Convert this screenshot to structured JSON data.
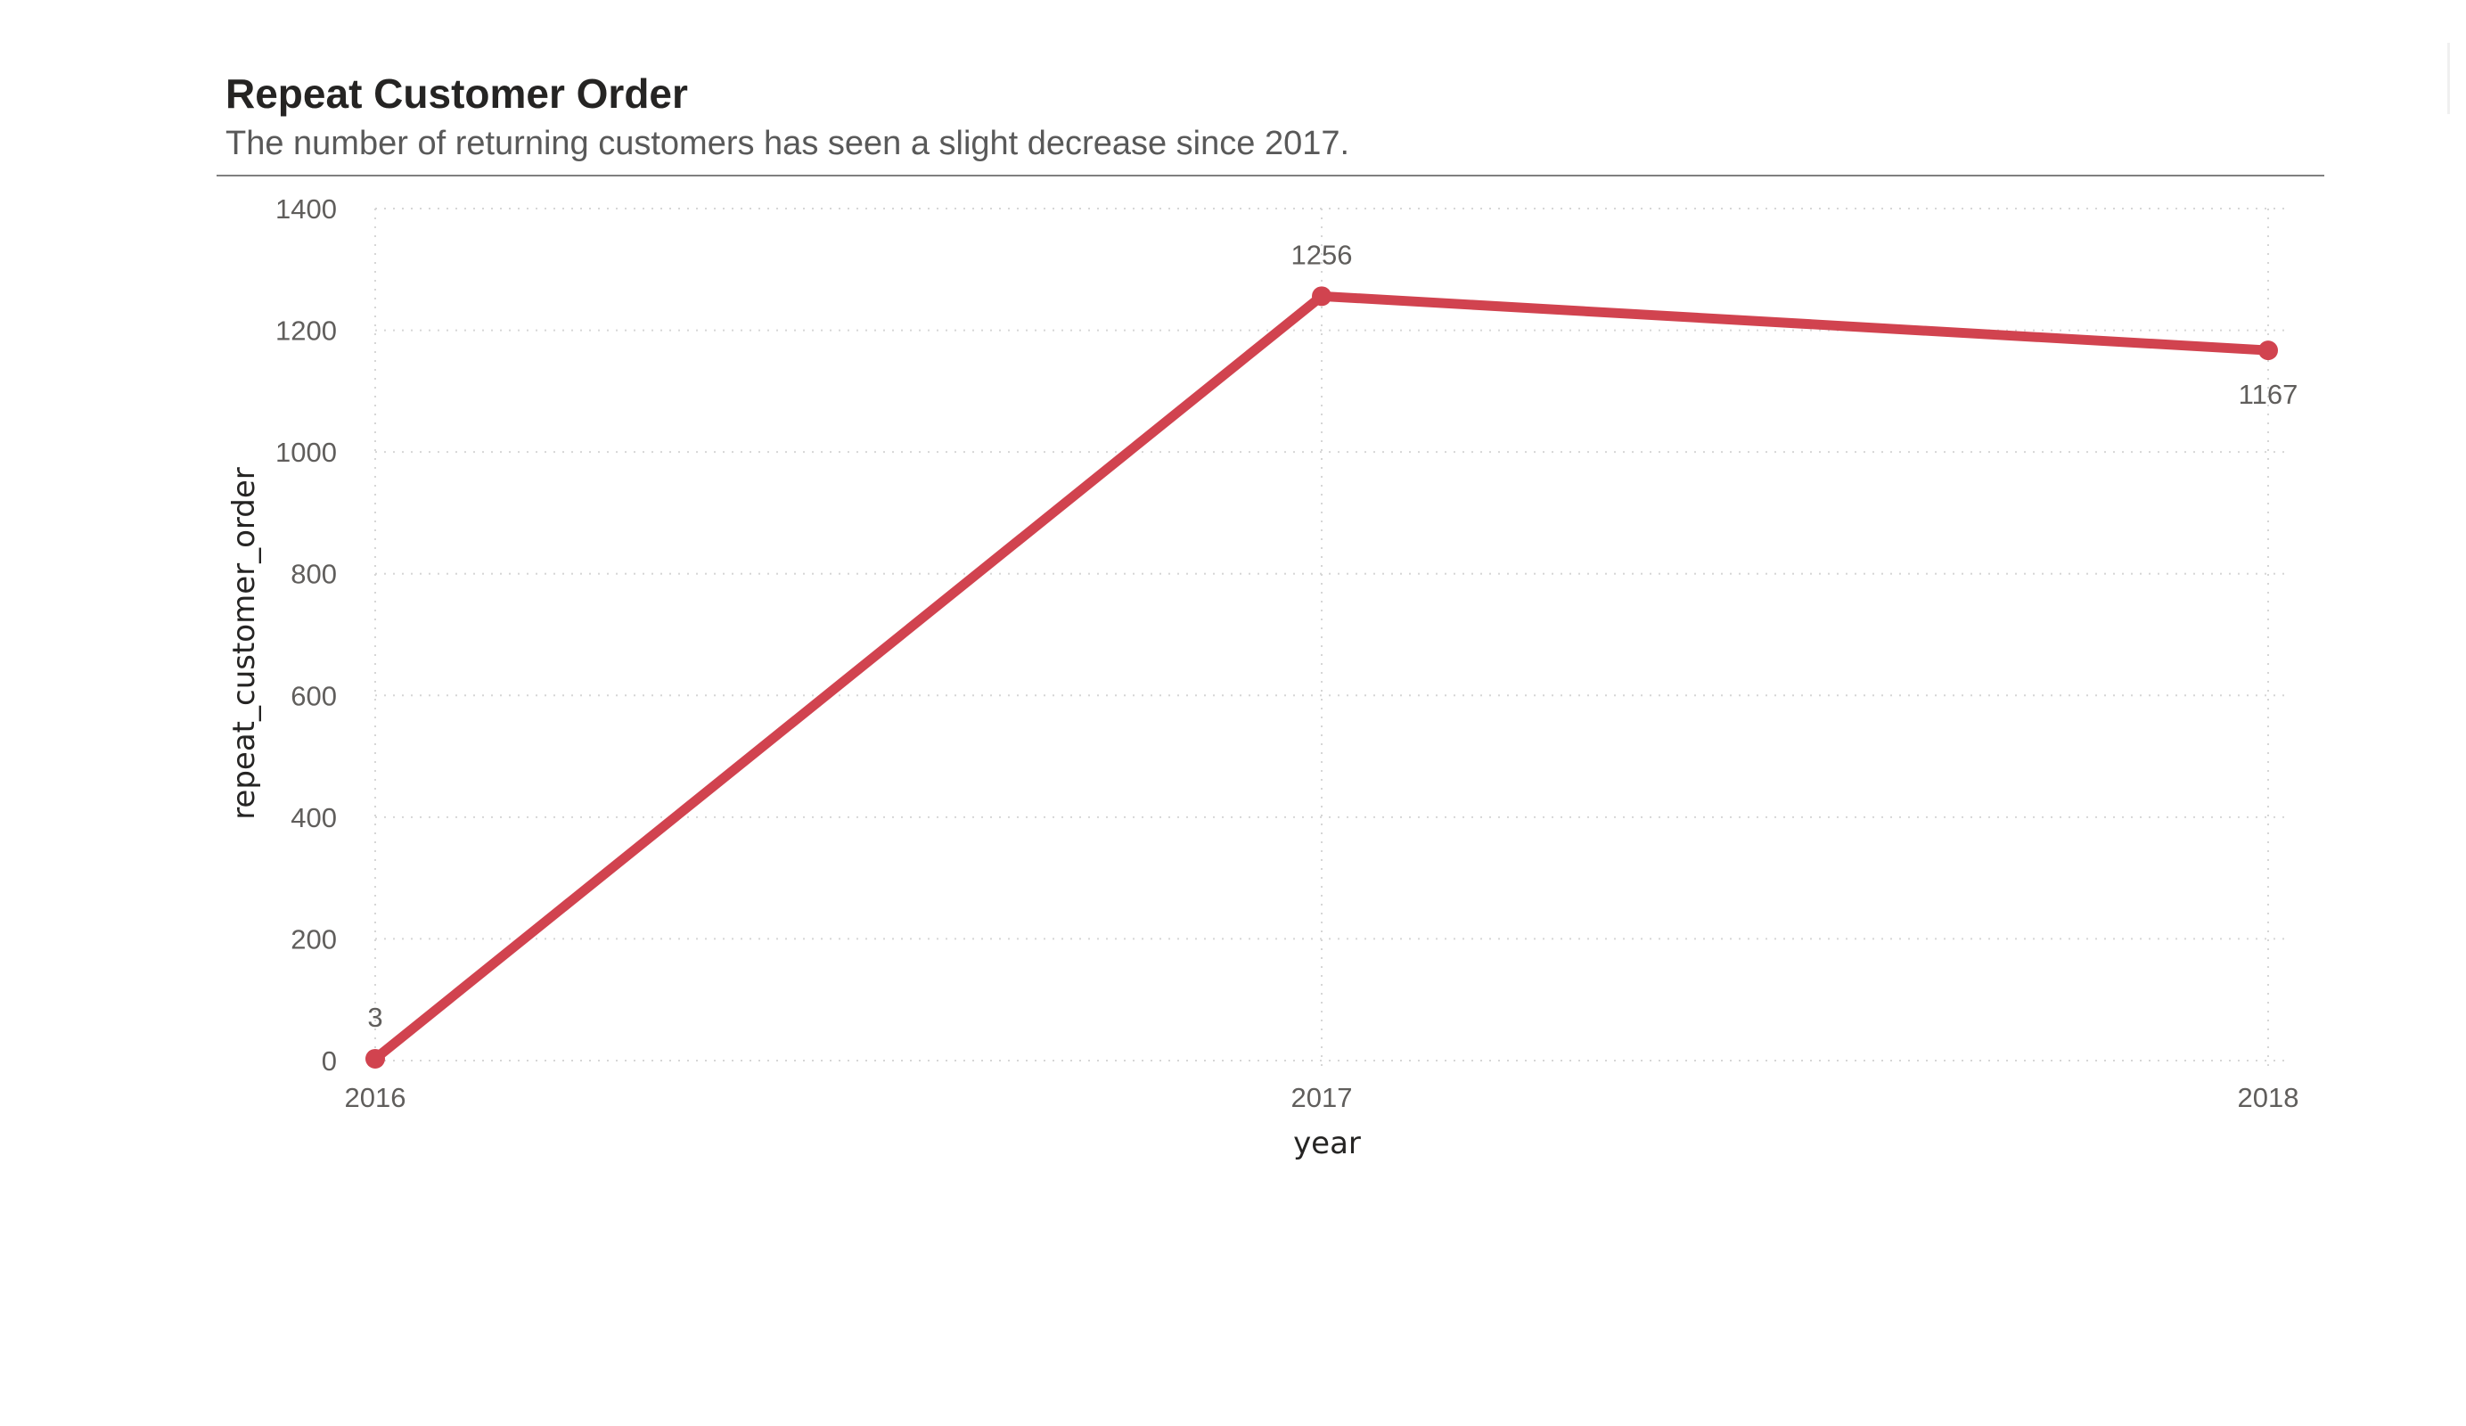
{
  "chart_data": {
    "type": "line",
    "title": "Repeat Customer Order",
    "subtitle": "The number of returning customers has seen a slight decrease since 2017.",
    "xlabel": "year",
    "ylabel": "repeat_customer_order",
    "categories": [
      "2016",
      "2017",
      "2018"
    ],
    "series": [
      {
        "values": [
          3,
          1256,
          1167
        ],
        "color": "#d1434f"
      }
    ],
    "data_labels": [
      "3",
      "1256",
      "1167"
    ],
    "ylim": [
      0,
      1400
    ],
    "yticks": [
      0,
      200,
      400,
      600,
      800,
      1000,
      1200,
      1400
    ],
    "grid": true,
    "legend": "none"
  }
}
